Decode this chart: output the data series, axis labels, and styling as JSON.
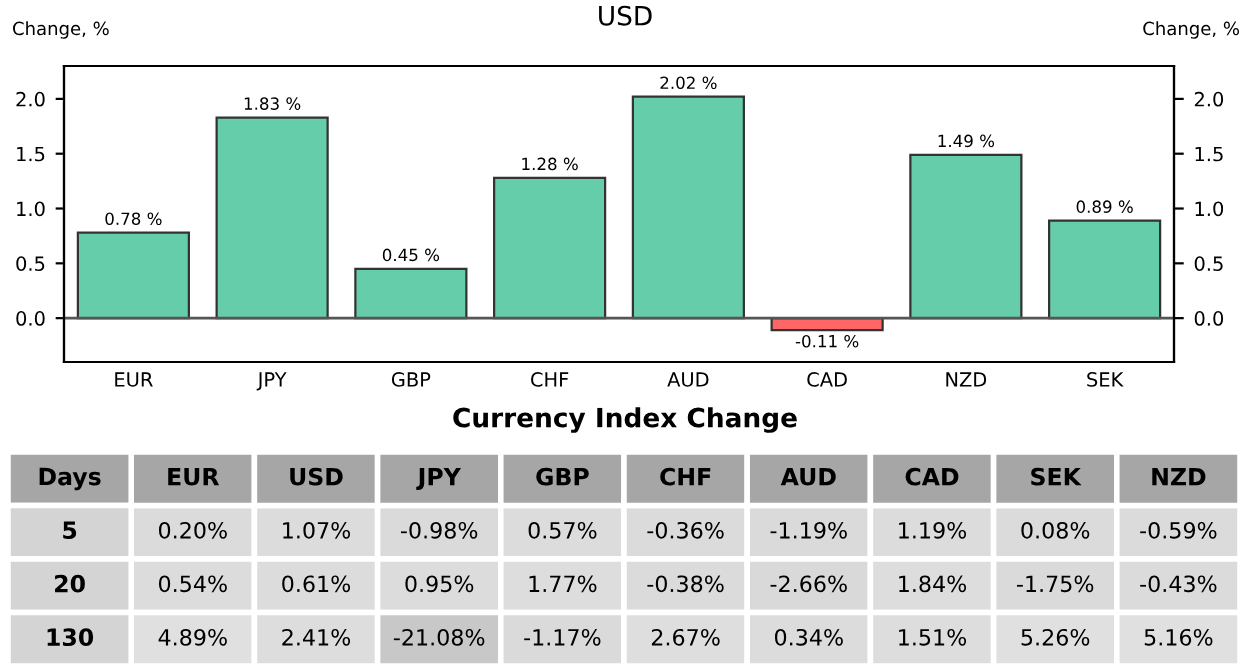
{
  "chart_data": [
    {
      "type": "bar",
      "title": "USD",
      "ylabel": "Change, %",
      "y2label": "Change, %",
      "categories": [
        "EUR",
        "JPY",
        "GBP",
        "CHF",
        "AUD",
        "CAD",
        "NZD",
        "SEK"
      ],
      "values": [
        0.78,
        1.83,
        0.45,
        1.28,
        2.02,
        -0.11,
        1.49,
        0.89
      ],
      "colors": [
        "#66cdaa",
        "#66cdaa",
        "#66cdaa",
        "#66cdaa",
        "#66cdaa",
        "#ff6666",
        "#66cdaa",
        "#66cdaa"
      ],
      "value_labels": [
        "0.78 %",
        "1.83 %",
        "0.45 %",
        "1.28 %",
        "2.02 %",
        "-0.11 %",
        "1.49 %",
        "0.89 %"
      ],
      "ylim": [
        -0.4,
        2.3
      ],
      "yticks": [
        {
          "value": 0,
          "label": "0.0"
        },
        0.5,
        {
          "value": 1,
          "label": "1.0"
        },
        1.5,
        {
          "value": 2,
          "label": "2.0"
        }
      ],
      "y2lim": [
        -0.4,
        2.3
      ],
      "y2ticks": [
        {
          "value": 0,
          "label": "0.0"
        },
        0.5,
        {
          "value": 1,
          "label": "1.0"
        },
        1.5,
        {
          "value": 2,
          "label": "2.0"
        }
      ]
    },
    {
      "type": "heatmap",
      "title": "Currency Index Change",
      "ylabel": "Days",
      "color": "#d4d4d4",
      "categories": [
        "EUR",
        "USD",
        "JPY",
        "GBP",
        "CHF",
        "AUD",
        "CAD",
        "SEK",
        "NZD"
      ],
      "y_categories": [
        "5",
        "20",
        "130"
      ],
      "cells": [
        [
          0.2,
          1.07,
          -0.98,
          0.57,
          -0.36,
          -1.19,
          1.19,
          0.08,
          -0.59
        ],
        [
          0.54,
          0.61,
          0.95,
          1.77,
          -0.38,
          -2.66,
          1.84,
          -1.75,
          -0.43
        ],
        [
          4.89,
          2.41,
          -21.08,
          -1.17,
          2.67,
          0.34,
          1.51,
          5.26,
          5.16
        ]
      ],
      "cell_labels": [
        [
          "0.20%",
          "1.07%",
          "-0.98%",
          "0.57%",
          "-0.36%",
          "-1.19%",
          "1.19%",
          "0.08%",
          "-0.59%"
        ],
        [
          "0.54%",
          "0.61%",
          "0.95%",
          "1.77%",
          "-0.38%",
          "-2.66%",
          "1.84%",
          "-1.75%",
          "-0.43%"
        ],
        [
          "4.89%",
          "2.41%",
          "-21.08%",
          "-1.17%",
          "2.67%",
          "0.34%",
          "1.51%",
          "5.26%",
          "5.16%"
        ]
      ]
    }
  ]
}
